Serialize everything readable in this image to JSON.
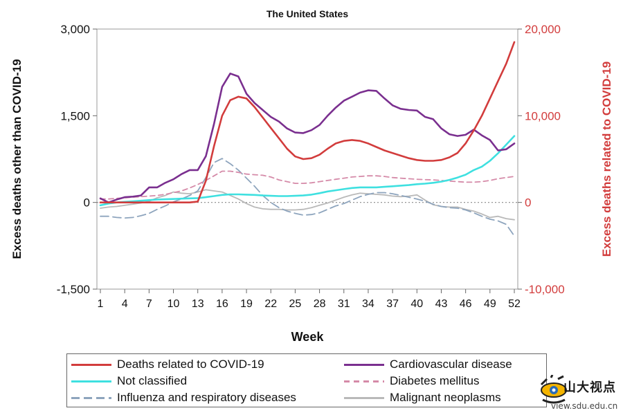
{
  "chart_data": {
    "type": "line",
    "title": "The United States",
    "xlabel": "Week",
    "ylabel_left": "Excess deaths other than COVID-19",
    "ylabel_right": "Excess deaths related to COVID-19",
    "xlim": [
      1,
      52
    ],
    "ylim_left": [
      -1500,
      3000
    ],
    "ylim_right": [
      -10000,
      20000
    ],
    "x_ticks": [
      "1",
      "4",
      "7",
      "10",
      "13",
      "16",
      "19",
      "22",
      "25",
      "28",
      "31",
      "34",
      "37",
      "40",
      "43",
      "46",
      "49",
      "52"
    ],
    "y_ticks_left": [
      "3,000",
      "1,500",
      "0",
      "-1,500"
    ],
    "y_ticks_right": [
      "20,000",
      "10,000",
      "0",
      "-10,000"
    ],
    "zero_reference_line": "dotted",
    "weeks": [
      1,
      2,
      3,
      4,
      5,
      6,
      7,
      8,
      9,
      10,
      11,
      12,
      13,
      14,
      15,
      16,
      17,
      18,
      19,
      20,
      21,
      22,
      23,
      24,
      25,
      26,
      27,
      28,
      29,
      30,
      31,
      32,
      33,
      34,
      35,
      36,
      37,
      38,
      39,
      40,
      41,
      42,
      43,
      44,
      45,
      46,
      47,
      48,
      49,
      50,
      51,
      52
    ],
    "series": [
      {
        "name": "Deaths related to COVID-19",
        "axis": "right",
        "color": "#d23c3c",
        "dash": "solid",
        "values": [
          0,
          0,
          0,
          0,
          0,
          0,
          0,
          0,
          0,
          0,
          0,
          0,
          100,
          2500,
          6500,
          10000,
          11800,
          12200,
          12000,
          11000,
          9800,
          8600,
          7400,
          6200,
          5300,
          5000,
          5100,
          5500,
          6200,
          6800,
          7100,
          7200,
          7100,
          6800,
          6400,
          6000,
          5700,
          5400,
          5100,
          4900,
          4800,
          4800,
          4900,
          5200,
          5700,
          6800,
          8300,
          10000,
          12000,
          14000,
          16000,
          18500
        ]
      },
      {
        "name": "Cardiovascular disease",
        "axis": "left",
        "color": "#7a2f8f",
        "dash": "solid",
        "values": [
          70,
          0,
          50,
          90,
          100,
          120,
          260,
          260,
          340,
          400,
          490,
          560,
          560,
          800,
          1360,
          2000,
          2230,
          2180,
          1880,
          1720,
          1600,
          1480,
          1400,
          1280,
          1210,
          1200,
          1250,
          1340,
          1500,
          1640,
          1760,
          1830,
          1900,
          1940,
          1930,
          1800,
          1680,
          1620,
          1600,
          1590,
          1480,
          1440,
          1280,
          1180,
          1150,
          1170,
          1260,
          1160,
          1080,
          900,
          920,
          1020
        ]
      },
      {
        "name": "Not classified",
        "axis": "left",
        "color": "#3ee0e0",
        "dash": "solid",
        "values": [
          -50,
          -20,
          0,
          10,
          20,
          30,
          40,
          50,
          55,
          60,
          65,
          70,
          75,
          90,
          110,
          130,
          140,
          140,
          135,
          130,
          120,
          115,
          110,
          110,
          115,
          120,
          135,
          160,
          190,
          210,
          230,
          250,
          260,
          260,
          260,
          270,
          280,
          290,
          300,
          315,
          325,
          340,
          360,
          390,
          430,
          480,
          560,
          620,
          720,
          850,
          1000,
          1150
        ]
      },
      {
        "name": "Diabetes mellitus",
        "axis": "left",
        "color": "#d58aa8",
        "dash": "dashed",
        "values": [
          60,
          60,
          70,
          80,
          90,
          100,
          110,
          120,
          140,
          170,
          200,
          250,
          310,
          380,
          460,
          540,
          540,
          520,
          490,
          480,
          470,
          440,
          390,
          360,
          330,
          330,
          340,
          360,
          380,
          400,
          420,
          440,
          450,
          460,
          460,
          450,
          430,
          420,
          410,
          400,
          395,
          390,
          380,
          370,
          360,
          350,
          350,
          360,
          380,
          410,
          430,
          450
        ]
      },
      {
        "name": "Influenza and respiratory diseases",
        "axis": "left",
        "color": "#8da4bd",
        "dash": "long-dash",
        "values": [
          -240,
          -240,
          -260,
          -270,
          -260,
          -230,
          -190,
          -120,
          -60,
          10,
          60,
          120,
          200,
          430,
          690,
          760,
          670,
          560,
          420,
          280,
          120,
          0,
          -90,
          -150,
          -190,
          -220,
          -210,
          -180,
          -120,
          -60,
          -20,
          40,
          100,
          140,
          170,
          170,
          150,
          120,
          90,
          60,
          20,
          -30,
          -70,
          -90,
          -100,
          -130,
          -180,
          -240,
          -290,
          -320,
          -380,
          -580
        ]
      },
      {
        "name": "Malignant neoplasms",
        "axis": "left",
        "color": "#b9b9b9",
        "dash": "solid",
        "values": [
          -100,
          -80,
          -70,
          -50,
          -30,
          -10,
          20,
          80,
          120,
          180,
          160,
          150,
          180,
          220,
          200,
          180,
          120,
          60,
          -20,
          -80,
          -110,
          -120,
          -120,
          -130,
          -130,
          -120,
          -90,
          -50,
          -10,
          40,
          90,
          130,
          160,
          150,
          140,
          130,
          110,
          100,
          110,
          130,
          40,
          -40,
          -70,
          -80,
          -80,
          -120,
          -150,
          -200,
          -260,
          -240,
          -280,
          -300
        ]
      }
    ]
  },
  "logo": {
    "text": "山大视点",
    "sub": "view.sdu.edu.cn"
  }
}
